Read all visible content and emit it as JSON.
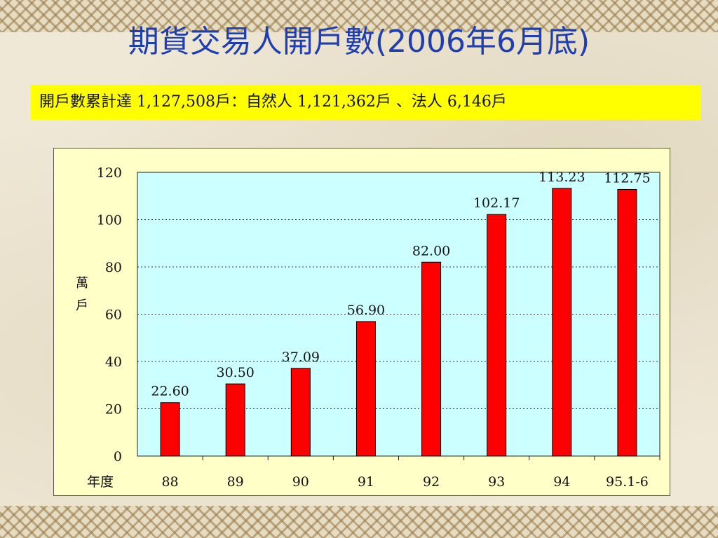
{
  "slide": {
    "title": "期貨交易人開戶數(2006年6月底)",
    "summary": "開戶數累計達 1,127,508戶：自然人 1,121,362戶 、法人 6,146戶"
  },
  "chart_data": {
    "type": "bar",
    "categories": [
      "88",
      "89",
      "90",
      "91",
      "92",
      "93",
      "94",
      "95.1-6"
    ],
    "values": [
      22.6,
      30.5,
      37.09,
      56.9,
      82.0,
      102.17,
      113.23,
      112.75
    ],
    "value_labels": [
      "22.60",
      "30.50",
      "37.09",
      "56.90",
      "82.00",
      "102.17",
      "113.23",
      "112.75"
    ],
    "title": "",
    "xlabel": "年度",
    "ylabel": "萬戶",
    "ylim": [
      0,
      120
    ],
    "yticks": [
      0,
      20,
      40,
      60,
      80,
      100,
      120
    ],
    "grid": true,
    "colors": {
      "bar": "#ff0000",
      "bar_border": "#000000",
      "plot_background": "#ccffff",
      "chart_background": "#ffffc8",
      "title": "#1f3fb0",
      "summary_background": "#ffff00"
    }
  }
}
